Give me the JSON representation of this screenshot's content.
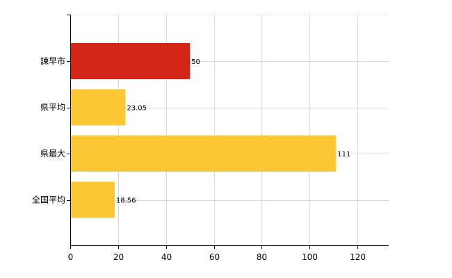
{
  "chart_data": {
    "type": "bar",
    "orientation": "horizontal",
    "categories": [
      "諫早市",
      "県平均",
      "県最大",
      "全国平均"
    ],
    "values": [
      50,
      23.05,
      111,
      18.56
    ],
    "value_labels": [
      "50",
      "23.05",
      "111",
      "18.56"
    ],
    "bar_colors": [
      "#d42317",
      "#fcc735",
      "#fcc735",
      "#fcc735"
    ],
    "title": "",
    "xlabel": "",
    "ylabel": "",
    "xlim": [
      0,
      133
    ],
    "x_ticks": [
      0,
      20,
      40,
      60,
      80,
      100,
      120
    ],
    "grid": true,
    "legend": "none"
  }
}
